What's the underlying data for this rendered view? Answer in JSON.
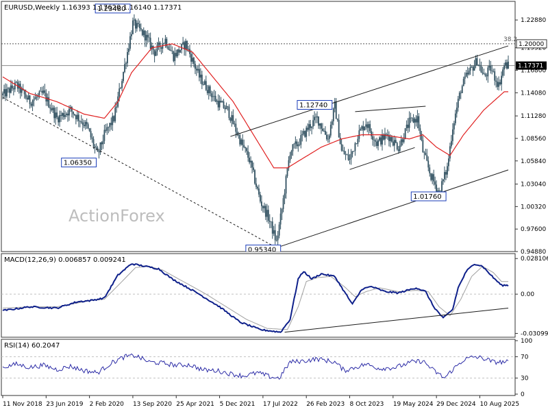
{
  "chart_data": {
    "type": "candlestick",
    "panels": [
      {
        "id": "price",
        "header": {
          "symbol": "EURUSD",
          "timeframe": "Weekly",
          "ohlc": "1.16393 1.17620 1.16140 1.17371"
        },
        "watermark": "ActionForex",
        "ylim": [
          0.9488,
          1.2513
        ],
        "yticks": [
          "1.22880",
          "1.19520",
          "1.16800",
          "1.14080",
          "1.11280",
          "1.08560",
          "1.05840",
          "1.03040",
          "1.00320",
          "0.97600",
          "0.94880"
        ],
        "ytick_values": [
          1.2288,
          1.1952,
          1.168,
          1.1408,
          1.1128,
          1.0856,
          1.0584,
          1.0304,
          1.0032,
          0.976,
          0.9488
        ],
        "current_price": "1.17371",
        "current_value": 1.17371,
        "fib_level": {
          "label": "38.2",
          "value": 1.2
        },
        "level_box": {
          "label": "1.20000",
          "value": 1.2
        },
        "annotations": [
          {
            "label": "1.23480",
            "week": 96,
            "value": 1.2348
          },
          {
            "label": "1.06350",
            "week": 70,
            "value": 1.0635
          },
          {
            "label": "1.12740",
            "week": 245,
            "value": 1.1274
          },
          {
            "label": "0.95340",
            "week": 202,
            "value": 0.9534
          },
          {
            "label": "1.01760",
            "week": 322,
            "value": 1.0176
          }
        ],
        "trendlines": [
          {
            "w1": 0,
            "v1": 1.135,
            "w2": 202,
            "v2": 0.9534,
            "style": "dashed"
          },
          {
            "w1": 168,
            "v1": 1.088,
            "w2": 373,
            "v2": 1.1975,
            "style": "solid"
          },
          {
            "w1": 202,
            "v1": 0.9534,
            "w2": 373,
            "v2": 1.0475,
            "style": "solid"
          },
          {
            "w1": 260,
            "v1": 1.118,
            "w2": 312,
            "v2": 1.1245,
            "style": "solid"
          },
          {
            "w1": 256,
            "v1": 1.048,
            "w2": 304,
            "v2": 1.0745,
            "style": "solid"
          }
        ],
        "close_anchors": [
          [
            0,
            1.138
          ],
          [
            10,
            1.15
          ],
          [
            20,
            1.13
          ],
          [
            30,
            1.14
          ],
          [
            40,
            1.11
          ],
          [
            50,
            1.12
          ],
          [
            62,
            1.1
          ],
          [
            70,
            1.065
          ],
          [
            75,
            1.09
          ],
          [
            82,
            1.11
          ],
          [
            92,
            1.19
          ],
          [
            96,
            1.225
          ],
          [
            105,
            1.21
          ],
          [
            112,
            1.19
          ],
          [
            120,
            1.205
          ],
          [
            126,
            1.185
          ],
          [
            135,
            1.2
          ],
          [
            145,
            1.16
          ],
          [
            158,
            1.13
          ],
          [
            166,
            1.12
          ],
          [
            176,
            1.08
          ],
          [
            182,
            1.06
          ],
          [
            190,
            1.01
          ],
          [
            196,
            0.99
          ],
          [
            202,
            0.96
          ],
          [
            206,
            1.0
          ],
          [
            212,
            1.07
          ],
          [
            218,
            1.08
          ],
          [
            226,
            1.1
          ],
          [
            232,
            1.11
          ],
          [
            240,
            1.085
          ],
          [
            245,
            1.125
          ],
          [
            250,
            1.07
          ],
          [
            256,
            1.06
          ],
          [
            262,
            1.09
          ],
          [
            268,
            1.105
          ],
          [
            276,
            1.08
          ],
          [
            284,
            1.09
          ],
          [
            292,
            1.075
          ],
          [
            300,
            1.105
          ],
          [
            306,
            1.11
          ],
          [
            310,
            1.07
          ],
          [
            316,
            1.04
          ],
          [
            322,
            1.02
          ],
          [
            328,
            1.05
          ],
          [
            332,
            1.1
          ],
          [
            338,
            1.145
          ],
          [
            342,
            1.16
          ],
          [
            350,
            1.18
          ],
          [
            355,
            1.16
          ],
          [
            360,
            1.17
          ],
          [
            366,
            1.15
          ],
          [
            370,
            1.174
          ]
        ],
        "ma_anchors": [
          [
            0,
            1.16
          ],
          [
            20,
            1.14
          ],
          [
            40,
            1.13
          ],
          [
            60,
            1.115
          ],
          [
            75,
            1.11
          ],
          [
            85,
            1.13
          ],
          [
            95,
            1.165
          ],
          [
            110,
            1.195
          ],
          [
            125,
            1.2
          ],
          [
            140,
            1.19
          ],
          [
            155,
            1.16
          ],
          [
            170,
            1.13
          ],
          [
            185,
            1.09
          ],
          [
            200,
            1.05
          ],
          [
            210,
            1.05
          ],
          [
            220,
            1.06
          ],
          [
            235,
            1.075
          ],
          [
            250,
            1.085
          ],
          [
            265,
            1.09
          ],
          [
            280,
            1.09
          ],
          [
            300,
            1.085
          ],
          [
            310,
            1.09
          ],
          [
            320,
            1.075
          ],
          [
            330,
            1.065
          ],
          [
            340,
            1.09
          ],
          [
            355,
            1.12
          ],
          [
            370,
            1.142
          ]
        ]
      },
      {
        "id": "macd",
        "header": {
          "name": "MACD(12,26,9)",
          "values": "0.006857 0.009241"
        },
        "ylim": [
          -0.034,
          0.032
        ],
        "yticks": [
          "0.028106",
          "0.00",
          "-0.03099"
        ],
        "ytick_values": [
          0.028106,
          0.0,
          -0.03099
        ],
        "zero_value": 0.0,
        "trendline": {
          "w1": 208,
          "v1": -0.03,
          "w2": 373,
          "v2": -0.011
        },
        "macd_anchors": [
          [
            0,
            -0.013
          ],
          [
            20,
            -0.01
          ],
          [
            40,
            -0.011
          ],
          [
            55,
            -0.006
          ],
          [
            65,
            -0.005
          ],
          [
            75,
            -0.003
          ],
          [
            85,
            0.015
          ],
          [
            95,
            0.024
          ],
          [
            105,
            0.022
          ],
          [
            115,
            0.02
          ],
          [
            125,
            0.012
          ],
          [
            135,
            0.006
          ],
          [
            145,
            0.0
          ],
          [
            160,
            -0.01
          ],
          [
            175,
            -0.022
          ],
          [
            190,
            -0.028
          ],
          [
            205,
            -0.03
          ],
          [
            212,
            -0.02
          ],
          [
            218,
            0.012
          ],
          [
            222,
            0.018
          ],
          [
            228,
            0.012
          ],
          [
            235,
            0.016
          ],
          [
            245,
            0.014
          ],
          [
            252,
            0.002
          ],
          [
            258,
            -0.008
          ],
          [
            265,
            0.004
          ],
          [
            272,
            0.006
          ],
          [
            282,
            0.002
          ],
          [
            292,
            0.001
          ],
          [
            305,
            0.005
          ],
          [
            312,
            0.002
          ],
          [
            318,
            -0.01
          ],
          [
            325,
            -0.019
          ],
          [
            332,
            -0.012
          ],
          [
            336,
            0.005
          ],
          [
            342,
            0.018
          ],
          [
            348,
            0.024
          ],
          [
            354,
            0.022
          ],
          [
            362,
            0.013
          ],
          [
            368,
            0.007
          ]
        ],
        "signal_anchors": [
          [
            0,
            -0.011
          ],
          [
            20,
            -0.01
          ],
          [
            40,
            -0.01
          ],
          [
            55,
            -0.007
          ],
          [
            65,
            -0.005
          ],
          [
            75,
            -0.004
          ],
          [
            88,
            0.01
          ],
          [
            98,
            0.021
          ],
          [
            108,
            0.022
          ],
          [
            118,
            0.019
          ],
          [
            128,
            0.013
          ],
          [
            140,
            0.006
          ],
          [
            150,
            0.0
          ],
          [
            165,
            -0.01
          ],
          [
            180,
            -0.02
          ],
          [
            195,
            -0.027
          ],
          [
            210,
            -0.028
          ],
          [
            218,
            -0.01
          ],
          [
            224,
            0.01
          ],
          [
            232,
            0.013
          ],
          [
            242,
            0.014
          ],
          [
            252,
            0.006
          ],
          [
            260,
            -0.002
          ],
          [
            268,
            0.002
          ],
          [
            278,
            0.005
          ],
          [
            292,
            0.002
          ],
          [
            305,
            0.003
          ],
          [
            314,
            0.002
          ],
          [
            322,
            -0.01
          ],
          [
            330,
            -0.017
          ],
          [
            338,
            -0.004
          ],
          [
            346,
            0.014
          ],
          [
            354,
            0.022
          ],
          [
            362,
            0.017
          ],
          [
            368,
            0.01
          ]
        ]
      },
      {
        "id": "rsi",
        "header": {
          "name": "RSI(14)",
          "values": "60.2047"
        },
        "ylim": [
          0,
          100
        ],
        "yticks": [
          "100",
          "70",
          "30",
          "0"
        ],
        "ytick_values": [
          100,
          70,
          30,
          0
        ],
        "levels": [
          70,
          30
        ],
        "rsi_anchors": [
          [
            0,
            50
          ],
          [
            10,
            56
          ],
          [
            20,
            50
          ],
          [
            30,
            54
          ],
          [
            40,
            46
          ],
          [
            50,
            52
          ],
          [
            60,
            44
          ],
          [
            70,
            40
          ],
          [
            80,
            58
          ],
          [
            90,
            70
          ],
          [
            98,
            72
          ],
          [
            108,
            60
          ],
          [
            118,
            58
          ],
          [
            128,
            54
          ],
          [
            138,
            55
          ],
          [
            148,
            45
          ],
          [
            158,
            44
          ],
          [
            168,
            38
          ],
          [
            178,
            34
          ],
          [
            188,
            40
          ],
          [
            198,
            32
          ],
          [
            204,
            30
          ],
          [
            212,
            60
          ],
          [
            222,
            62
          ],
          [
            232,
            66
          ],
          [
            245,
            60
          ],
          [
            252,
            44
          ],
          [
            260,
            50
          ],
          [
            268,
            56
          ],
          [
            278,
            48
          ],
          [
            290,
            50
          ],
          [
            302,
            60
          ],
          [
            310,
            62
          ],
          [
            318,
            44
          ],
          [
            326,
            30
          ],
          [
            332,
            46
          ],
          [
            340,
            64
          ],
          [
            348,
            70
          ],
          [
            356,
            66
          ],
          [
            362,
            60
          ],
          [
            368,
            60
          ]
        ]
      }
    ],
    "x_axis": {
      "type": "date",
      "weeks_total": 374,
      "tick_labels": [
        "11 Nov 2018",
        "23 Jun 2019",
        "2 Feb 2020",
        "13 Sep 2020",
        "25 Apr 2021",
        "5 Dec 2021",
        "17 Jul 2022",
        "26 Feb 2023",
        "8 Oct 2023",
        "19 May 2024",
        "29 Dec 2024",
        "10 Aug 2025"
      ],
      "tick_weeks": [
        0,
        32,
        64,
        96,
        128,
        160,
        192,
        224,
        256,
        288,
        320,
        352
      ]
    },
    "colors": {
      "candle": "#2f4f5f",
      "ma": "#e02020",
      "macd": "#0d1f8a",
      "signal": "#a0a0a0",
      "rsi": "#2b2ba6",
      "trendline": "#1a1a1a",
      "grid": "#c0c0c0",
      "label_box": "#1a3cb8",
      "current_price_bg": "#000000"
    }
  }
}
